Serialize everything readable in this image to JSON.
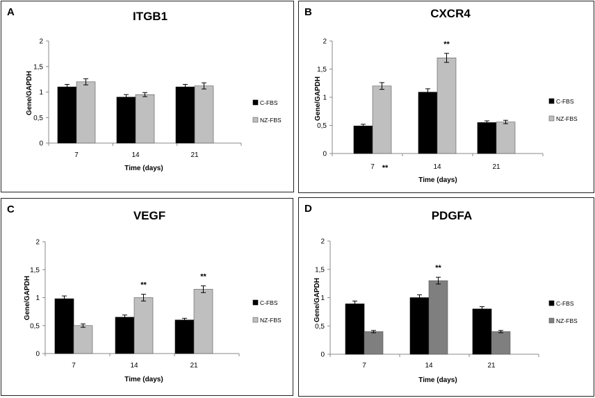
{
  "chart_data": [
    {
      "panel": "A",
      "type": "bar",
      "title": "ITGB1",
      "categories": [
        "7",
        "14",
        "21"
      ],
      "series": [
        {
          "name": "C-FBS",
          "color": "#000000",
          "values": [
            1.1,
            0.9,
            1.1
          ],
          "errors": [
            0.05,
            0.05,
            0.05
          ]
        },
        {
          "name": "NZ-FBS",
          "color": "#bfbfbf",
          "values": [
            1.2,
            0.95,
            1.12
          ],
          "errors": [
            0.06,
            0.04,
            0.06
          ]
        }
      ],
      "xlabel": "Time (days)",
      "ylabel": "Gene/GAPDH",
      "ylim": [
        0,
        2
      ],
      "yticks": [
        "0",
        "0,5",
        "1",
        "1,5",
        "2"
      ],
      "annotations": []
    },
    {
      "panel": "B",
      "type": "bar",
      "title": "CXCR4",
      "categories": [
        "7",
        "14",
        "21"
      ],
      "series": [
        {
          "name": "C-FBS",
          "color": "#000000",
          "values": [
            0.49,
            1.09,
            0.55
          ],
          "errors": [
            0.03,
            0.06,
            0.03
          ]
        },
        {
          "name": "NZ-FBS",
          "color": "#bfbfbf",
          "values": [
            1.2,
            1.7,
            0.56
          ],
          "errors": [
            0.06,
            0.08,
            0.03
          ]
        }
      ],
      "xlabel": "Time (days)",
      "ylabel": "Gene/GAPDH",
      "ylim": [
        0,
        2
      ],
      "yticks": [
        "0",
        "0,5",
        "1",
        "1,5",
        "2"
      ],
      "annotations": [
        {
          "text": "**",
          "anchor": "bar",
          "category": 1,
          "series": 1
        },
        {
          "text": "**",
          "anchor": "xtick",
          "category": 0
        }
      ]
    },
    {
      "panel": "C",
      "type": "bar",
      "title": "VEGF",
      "categories": [
        "7",
        "14",
        "21"
      ],
      "series": [
        {
          "name": "C-FBS",
          "color": "#000000",
          "values": [
            0.98,
            0.65,
            0.6
          ],
          "errors": [
            0.05,
            0.04,
            0.03
          ]
        },
        {
          "name": "NZ-FBS",
          "color": "#bfbfbf",
          "values": [
            0.5,
            1.0,
            1.15
          ],
          "errors": [
            0.03,
            0.06,
            0.06
          ]
        }
      ],
      "xlabel": "Time (days)",
      "ylabel": "Gene/GAPDH",
      "ylim": [
        0,
        2
      ],
      "yticks": [
        "0",
        "0,5",
        "1",
        "1,5",
        "2"
      ],
      "annotations": [
        {
          "text": "**",
          "anchor": "bar",
          "category": 1,
          "series": 1
        },
        {
          "text": "**",
          "anchor": "bar",
          "category": 2,
          "series": 1
        }
      ]
    },
    {
      "panel": "D",
      "type": "bar",
      "title": "PDGFA",
      "categories": [
        "7",
        "14",
        "21"
      ],
      "series": [
        {
          "name": "C-FBS",
          "color": "#000000",
          "values": [
            0.89,
            1.0,
            0.8
          ],
          "errors": [
            0.05,
            0.05,
            0.04
          ]
        },
        {
          "name": "NZ-FBS",
          "color": "#7f7f7f",
          "values": [
            0.4,
            1.3,
            0.4
          ],
          "errors": [
            0.02,
            0.06,
            0.02
          ]
        }
      ],
      "xlabel": "Time (days)",
      "ylabel": "Gene/GAPDH",
      "ylim": [
        0,
        2
      ],
      "yticks": [
        "0",
        "0,5",
        "1",
        "1,5",
        "2"
      ],
      "annotations": [
        {
          "text": "**",
          "anchor": "bar",
          "category": 1,
          "series": 1
        }
      ]
    }
  ]
}
